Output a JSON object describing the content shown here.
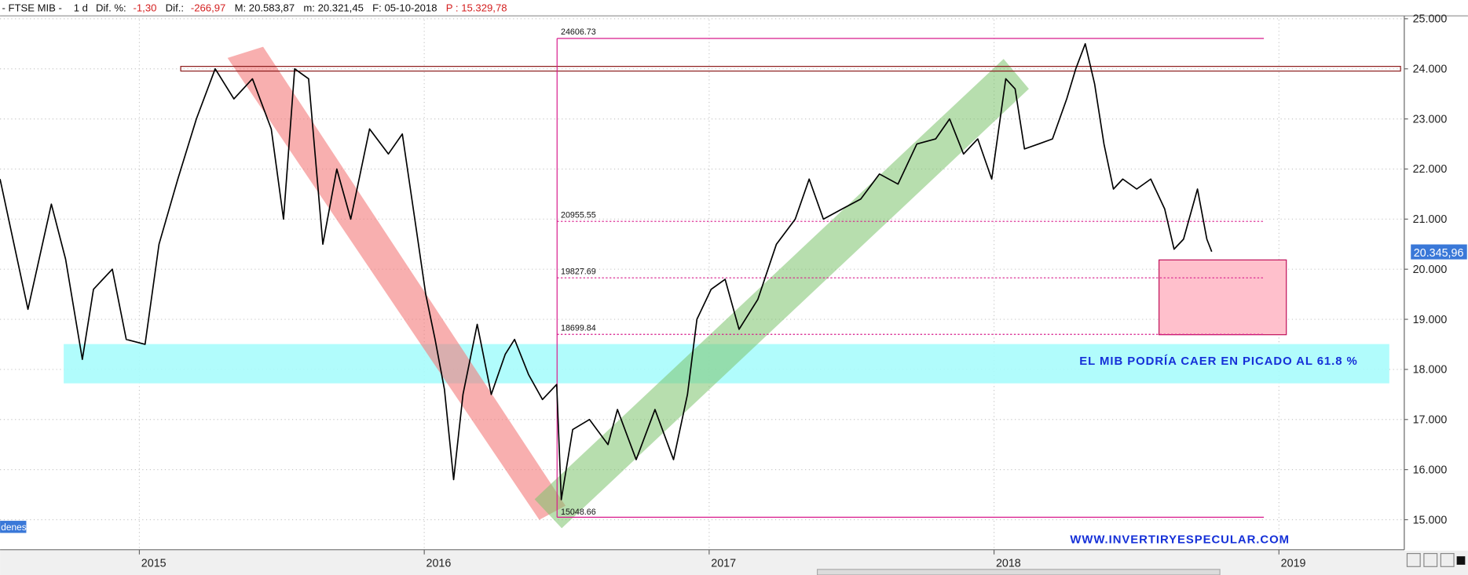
{
  "chart_data": {
    "type": "line",
    "header": [
      "- FTSE MIB -",
      "1 d",
      "Dif. %:",
      "-1,30",
      "Dif.:",
      "-266,97",
      "M: 20.583,87",
      "m: 20.321,45",
      "F: 05-10-2018",
      "P : 15.329,78"
    ],
    "annotations": [
      "EL MIB PODRÍA CAER EN PICADO AL 61.8 %",
      "WWW.INVERTIRYESPECULAR.COM",
      "denes"
    ],
    "x": [
      2014.511,
      2014.56,
      2014.609,
      2014.691,
      2014.741,
      2014.8,
      2014.839,
      2014.905,
      2014.954,
      2015.02,
      2015.069,
      2015.135,
      2015.2,
      2015.266,
      2015.332,
      2015.397,
      2015.463,
      2015.506,
      2015.545,
      2015.594,
      2015.644,
      2015.693,
      2015.742,
      2015.808,
      2015.874,
      2015.923,
      2015.972,
      2016.005,
      2016.038,
      2016.071,
      2016.103,
      2016.136,
      2016.186,
      2016.235,
      2016.284,
      2016.317,
      2016.366,
      2016.415,
      2016.465,
      2016.481,
      2016.521,
      2016.58,
      2016.645,
      2016.678,
      2016.744,
      2016.81,
      2016.875,
      2016.924,
      2016.957,
      2017.007,
      2017.056,
      2017.105,
      2017.171,
      2017.236,
      2017.302,
      2017.351,
      2017.401,
      2017.466,
      2017.532,
      2017.598,
      2017.663,
      2017.729,
      2017.795,
      2017.844,
      2017.893,
      2017.943,
      2017.992,
      2018.041,
      2018.074,
      2018.107,
      2018.156,
      2018.205,
      2018.255,
      2018.287,
      2018.32,
      2018.353,
      2018.386,
      2018.419,
      2018.452,
      2018.501,
      2018.55,
      2018.599,
      2018.632,
      2018.665,
      2018.714,
      2018.747,
      2018.764
    ],
    "series": [
      {
        "name": "FTSE MIB",
        "color": "#000000",
        "values": [
          21800,
          20500,
          19200,
          21300,
          20200,
          18200,
          19600,
          20000,
          18600,
          18500,
          20500,
          21800,
          23000,
          24000,
          23400,
          23800,
          22800,
          21000,
          24000,
          23800,
          20500,
          22000,
          21000,
          22800,
          22300,
          22700,
          20800,
          19500,
          18600,
          17600,
          15800,
          17500,
          18900,
          17500,
          18300,
          18600,
          17900,
          17400,
          17700,
          15400,
          16800,
          17000,
          16500,
          17200,
          16200,
          17200,
          16200,
          17500,
          19000,
          19600,
          19800,
          18800,
          19400,
          20500,
          21000,
          21800,
          21000,
          21200,
          21400,
          21900,
          21700,
          22500,
          22600,
          23000,
          22300,
          22600,
          21800,
          23800,
          23600,
          22400,
          22500,
          22600,
          23400,
          24000,
          24500,
          23700,
          22500,
          21600,
          21800,
          21600,
          21800,
          21200,
          20400,
          20600,
          21600,
          20600,
          20350
        ]
      }
    ],
    "fib_levels": [
      24606.73,
      20955.55,
      19827.69,
      18699.84,
      15048.66
    ],
    "last_price": {
      "value": 20345.96,
      "label": "20.345,96"
    },
    "xlim": [
      2014.511,
      2019.44
    ],
    "xticks": [
      2015,
      2016,
      2017,
      2018,
      2019
    ],
    "ylim": [
      14400,
      25150
    ],
    "yticks": [
      {
        "value": 15000,
        "label": "15.000"
      },
      {
        "value": 16000,
        "label": "16.000"
      },
      {
        "value": 17000,
        "label": "17.000"
      },
      {
        "value": 18000,
        "label": "18.000"
      },
      {
        "value": 19000,
        "label": "19.000"
      },
      {
        "value": 20000,
        "label": "20.000"
      },
      {
        "value": 21000,
        "label": "21.000"
      },
      {
        "value": 22000,
        "label": "22.000"
      },
      {
        "value": 23000,
        "label": "23.000"
      },
      {
        "value": 24000,
        "label": "24.000"
      },
      {
        "value": 25000,
        "label": "25.000"
      }
    ],
    "grid": true
  }
}
